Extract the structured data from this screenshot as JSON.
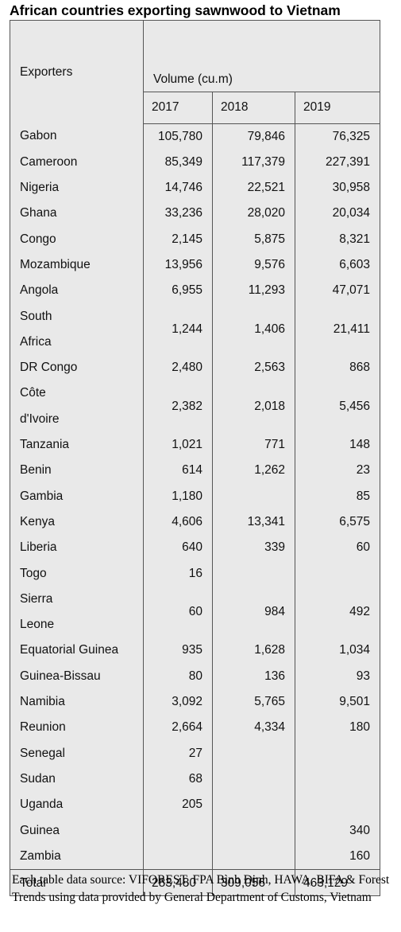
{
  "title": "African countries exporting sawnwood to Vietnam",
  "table": {
    "exporters_label": "Exporters",
    "volume_label": "Volume (cu.m)",
    "years": [
      "2017",
      "2018",
      "2019"
    ],
    "rows": [
      {
        "lines": [
          "Gabon"
        ],
        "v2017": "105,780",
        "v2018": "79,846",
        "v2019": "76,325"
      },
      {
        "lines": [
          "Cameroon"
        ],
        "v2017": "85,349",
        "v2018": "117,379",
        "v2019": "227,391"
      },
      {
        "lines": [
          "Nigeria"
        ],
        "v2017": "14,746",
        "v2018": "22,521",
        "v2019": "30,958"
      },
      {
        "lines": [
          "Ghana"
        ],
        "v2017": "33,236",
        "v2018": "28,020",
        "v2019": "20,034"
      },
      {
        "lines": [
          "Congo"
        ],
        "v2017": "2,145",
        "v2018": "5,875",
        "v2019": "8,321"
      },
      {
        "lines": [
          "Mozambique"
        ],
        "v2017": "13,956",
        "v2018": "9,576",
        "v2019": "6,603"
      },
      {
        "lines": [
          "Angola"
        ],
        "v2017": "6,955",
        "v2018": "11,293",
        "v2019": "47,071"
      },
      {
        "lines": [
          "South",
          "Africa"
        ],
        "v2017": "1,244",
        "v2018": "1,406",
        "v2019": "21,411"
      },
      {
        "lines": [
          "DR Congo"
        ],
        "v2017": "2,480",
        "v2018": "2,563",
        "v2019": "868"
      },
      {
        "lines": [
          "Côte",
          "d'Ivoire"
        ],
        "v2017": "2,382",
        "v2018": "2,018",
        "v2019": "5,456"
      },
      {
        "lines": [
          "Tanzania"
        ],
        "v2017": "1,021",
        "v2018": "771",
        "v2019": "148"
      },
      {
        "lines": [
          "Benin"
        ],
        "v2017": "614",
        "v2018": "1,262",
        "v2019": "23"
      },
      {
        "lines": [
          "Gambia"
        ],
        "v2017": "1,180",
        "v2018": "",
        "v2019": "85"
      },
      {
        "lines": [
          "Kenya"
        ],
        "v2017": "4,606",
        "v2018": "13,341",
        "v2019": "6,575"
      },
      {
        "lines": [
          "Liberia"
        ],
        "v2017": "640",
        "v2018": "339",
        "v2019": "60"
      },
      {
        "lines": [
          "Togo"
        ],
        "v2017": "16",
        "v2018": "",
        "v2019": ""
      },
      {
        "lines": [
          "Sierra",
          "Leone"
        ],
        "v2017": "60",
        "v2018": "984",
        "v2019": "492"
      },
      {
        "lines": [
          "Equatorial Guinea"
        ],
        "v2017": "935",
        "v2018": "1,628",
        "v2019": "1,034"
      },
      {
        "lines": [
          "Guinea-Bissau"
        ],
        "v2017": "80",
        "v2018": "136",
        "v2019": "93"
      },
      {
        "lines": [
          "Namibia"
        ],
        "v2017": "3,092",
        "v2018": "5,765",
        "v2019": "9,501"
      },
      {
        "lines": [
          "Reunion"
        ],
        "v2017": "2,664",
        "v2018": "4,334",
        "v2019": "180"
      },
      {
        "lines": [
          "Senegal"
        ],
        "v2017": "27",
        "v2018": "",
        "v2019": ""
      },
      {
        "lines": [
          "Sudan"
        ],
        "v2017": "68",
        "v2018": "",
        "v2019": ""
      },
      {
        "lines": [
          "Uganda"
        ],
        "v2017": "205",
        "v2018": "",
        "v2019": ""
      },
      {
        "lines": [
          "Guinea"
        ],
        "v2017": "",
        "v2018": "",
        "v2019": "340"
      },
      {
        "lines": [
          "Zambia"
        ],
        "v2017": "",
        "v2018": "",
        "v2019": "160"
      }
    ],
    "total": {
      "label": "Total",
      "v2017": "283,480",
      "v2018": "309,056",
      "v2019": "463,129"
    }
  },
  "source": "Each table data source: VIFOREST, FPA Bình Định, HAWA, BIFA & Forest Trends using data provided by General Department of Customs, Vietnam"
}
